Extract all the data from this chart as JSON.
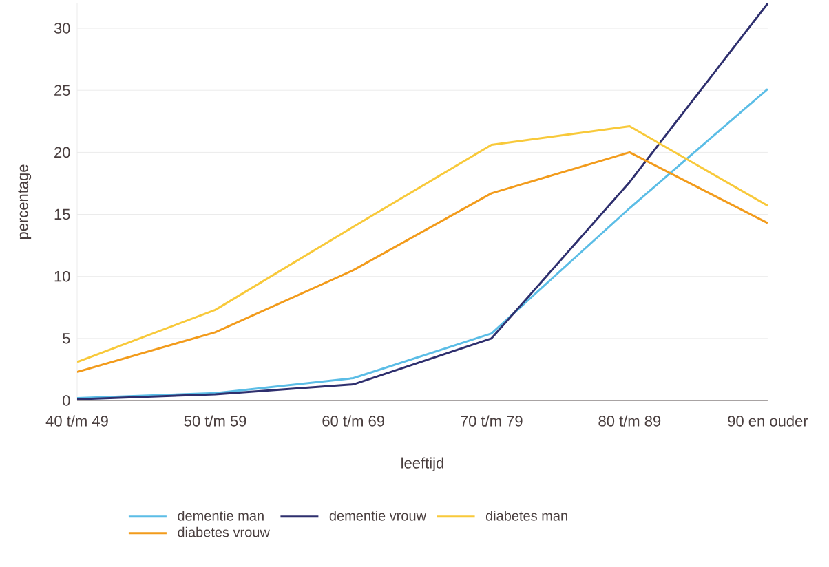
{
  "chart_data": {
    "type": "line",
    "xlabel": "leeftijd",
    "ylabel": "percentage",
    "categories": [
      "40 t/m 49",
      "50 t/m 59",
      "60 t/m 69",
      "70 t/m 79",
      "80 t/m 89",
      "90 en ouder"
    ],
    "series": [
      {
        "name": "dementie man",
        "color": "#5bbde6",
        "values": [
          0.2,
          0.6,
          1.8,
          5.4,
          15.5,
          25.1
        ]
      },
      {
        "name": "dementie vrouw",
        "color": "#2e2f6e",
        "values": [
          0.1,
          0.5,
          1.3,
          5.0,
          17.6,
          32
        ]
      },
      {
        "name": "diabetes man",
        "color": "#f8c93a",
        "values": [
          3.1,
          7.3,
          14.0,
          20.6,
          22.1,
          15.7
        ]
      },
      {
        "name": "diabetes vrouw",
        "color": "#f29b1b",
        "values": [
          2.3,
          5.5,
          10.5,
          16.7,
          20.0,
          14.3
        ]
      }
    ],
    "ylim": [
      0,
      32
    ],
    "yticks": [
      0,
      5,
      10,
      15,
      20,
      25,
      30
    ],
    "grid": "y",
    "legend": "bottom",
    "marker": "none",
    "line_style": "solid"
  }
}
